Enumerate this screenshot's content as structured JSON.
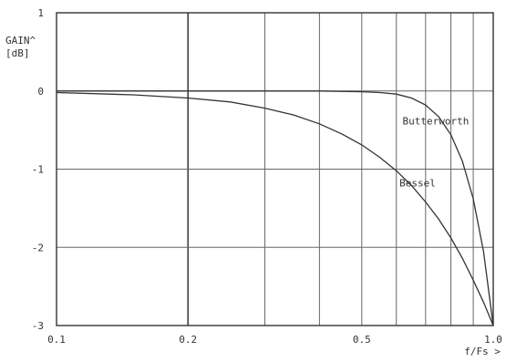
{
  "chart_data": {
    "type": "line",
    "x_scale": "log",
    "xlim": [
      0.1,
      1.0
    ],
    "ylim": [
      -3,
      1
    ],
    "xlabel": "f/Fs >",
    "ylabel_lines": [
      "GAIN^",
      "[dB]"
    ],
    "x_ticks": [
      {
        "value": 0.1,
        "label": "0.1"
      },
      {
        "value": 0.2,
        "label": "0.2"
      },
      {
        "value": 0.5,
        "label": "0.5"
      },
      {
        "value": 1.0,
        "label": "1.0"
      }
    ],
    "x_minor_grid": [
      0.3,
      0.4,
      0.5,
      0.6,
      0.7,
      0.8,
      0.9
    ],
    "x_major_grid": [
      0.2
    ],
    "y_ticks": [
      {
        "value": 1,
        "label": "1"
      },
      {
        "value": 0,
        "label": "0"
      },
      {
        "value": -1,
        "label": "-1"
      },
      {
        "value": -2,
        "label": "-2"
      },
      {
        "value": -3,
        "label": "-3"
      }
    ],
    "y_grid": [
      -2,
      -1,
      0
    ],
    "grid": true,
    "series": [
      {
        "name": "Butterworth",
        "x": [
          0.1,
          0.2,
          0.3,
          0.4,
          0.5,
          0.55,
          0.6,
          0.65,
          0.7,
          0.75,
          0.8,
          0.85,
          0.9,
          0.95,
          1.0
        ],
        "y": [
          0.0,
          0.0,
          0.0,
          0.0,
          -0.01,
          -0.02,
          -0.04,
          -0.09,
          -0.18,
          -0.33,
          -0.56,
          -0.9,
          -1.38,
          -2.05,
          -3.0
        ]
      },
      {
        "name": "Bessel",
        "x": [
          0.1,
          0.15,
          0.2,
          0.25,
          0.3,
          0.35,
          0.4,
          0.45,
          0.5,
          0.55,
          0.6,
          0.65,
          0.7,
          0.75,
          0.8,
          0.85,
          0.9,
          0.95,
          1.0
        ],
        "y": [
          -0.02,
          -0.05,
          -0.09,
          -0.14,
          -0.22,
          -0.31,
          -0.42,
          -0.55,
          -0.69,
          -0.85,
          -1.02,
          -1.21,
          -1.42,
          -1.64,
          -1.88,
          -2.14,
          -2.42,
          -2.7,
          -3.0
        ]
      }
    ],
    "series_labels": [
      {
        "text": "Butterworth",
        "x": 0.62,
        "y": -0.43
      },
      {
        "text": "Bessel",
        "x": 0.61,
        "y": -1.22
      }
    ]
  }
}
